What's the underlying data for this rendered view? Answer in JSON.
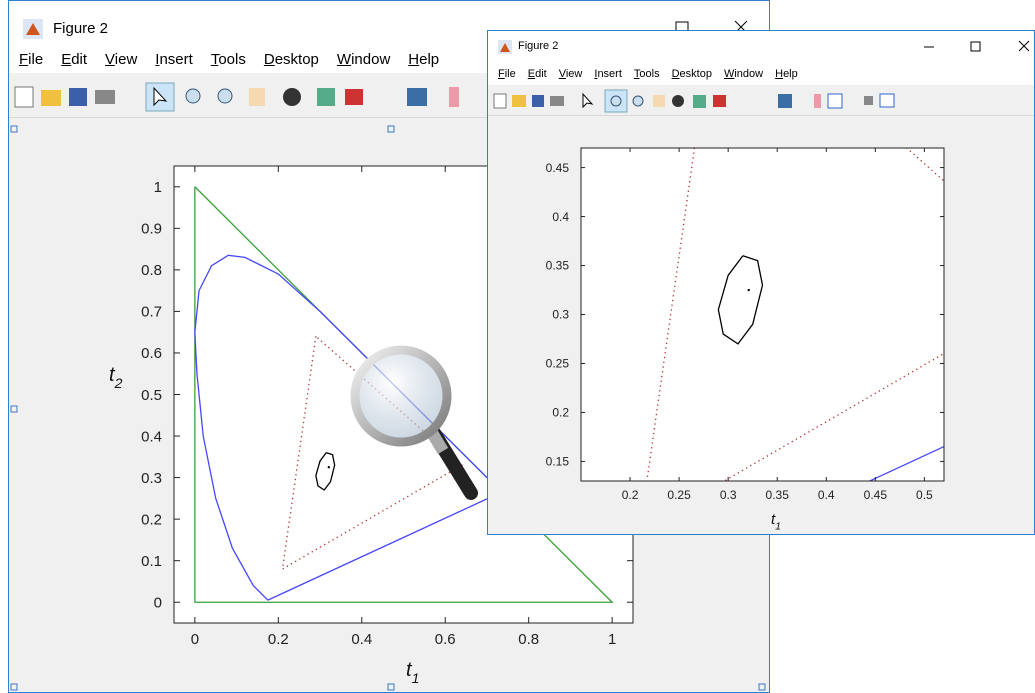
{
  "windows": [
    {
      "title": "Figure 2",
      "menu": [
        "File",
        "Edit",
        "View",
        "Insert",
        "Tools",
        "Desktop",
        "Window",
        "Help"
      ],
      "plot": {
        "xlim": [
          -0.05,
          1.05
        ],
        "ylim": [
          -0.05,
          1.05
        ],
        "xticks": [
          0,
          0.2,
          0.4,
          0.6,
          0.8,
          1
        ],
        "yticks": [
          0,
          0.1,
          0.2,
          0.3,
          0.4,
          0.5,
          0.6,
          0.7,
          0.8,
          0.9,
          1
        ],
        "xlabel": {
          "text": "t",
          "sub": "1"
        },
        "ylabel": {
          "text": "t",
          "sub": "2"
        }
      }
    },
    {
      "title": "Figure 2",
      "menu": [
        "File",
        "Edit",
        "View",
        "Insert",
        "Tools",
        "Desktop",
        "Window",
        "Help"
      ],
      "plot": {
        "xlim": [
          0.15,
          0.52
        ],
        "ylim": [
          0.13,
          0.47
        ],
        "xticks": [
          0.2,
          0.25,
          0.3,
          0.35,
          0.4,
          0.45,
          0.5
        ],
        "yticks": [
          0.15,
          0.2,
          0.25,
          0.3,
          0.35,
          0.4,
          0.45
        ],
        "xlabel": {
          "text": "t",
          "sub": "1"
        }
      }
    }
  ],
  "series": [
    {
      "color": "#3aa03a",
      "style": "solid",
      "x": [
        0,
        1,
        0,
        0
      ],
      "y": [
        1,
        0,
        0,
        1
      ]
    },
    {
      "color": "#4646ff",
      "style": "solid",
      "x": [
        0.175,
        0.14,
        0.09,
        0.05,
        0.02,
        0.005,
        0,
        0.01,
        0.04,
        0.08,
        0.12,
        0.2,
        0.3,
        0.4,
        0.5,
        0.6,
        0.7,
        0.735,
        0.175
      ],
      "y": [
        0.005,
        0.04,
        0.13,
        0.25,
        0.4,
        0.55,
        0.65,
        0.75,
        0.81,
        0.835,
        0.83,
        0.79,
        0.7,
        0.6,
        0.5,
        0.4,
        0.3,
        0.265,
        0.005
      ]
    },
    {
      "color": "#b03030",
      "style": "dotted",
      "x": [
        0.29,
        0.21,
        0.64,
        0.29
      ],
      "y": [
        0.64,
        0.08,
        0.33,
        0.64
      ]
    },
    {
      "color": "#000000",
      "style": "solid",
      "x": [
        0.315,
        0.33,
        0.335,
        0.325,
        0.31,
        0.295,
        0.29,
        0.3,
        0.315
      ],
      "y": [
        0.36,
        0.355,
        0.33,
        0.29,
        0.27,
        0.28,
        0.305,
        0.34,
        0.36
      ]
    },
    {
      "color": "#000000",
      "style": "point",
      "x": [
        0.321
      ],
      "y": [
        0.325
      ]
    }
  ]
}
